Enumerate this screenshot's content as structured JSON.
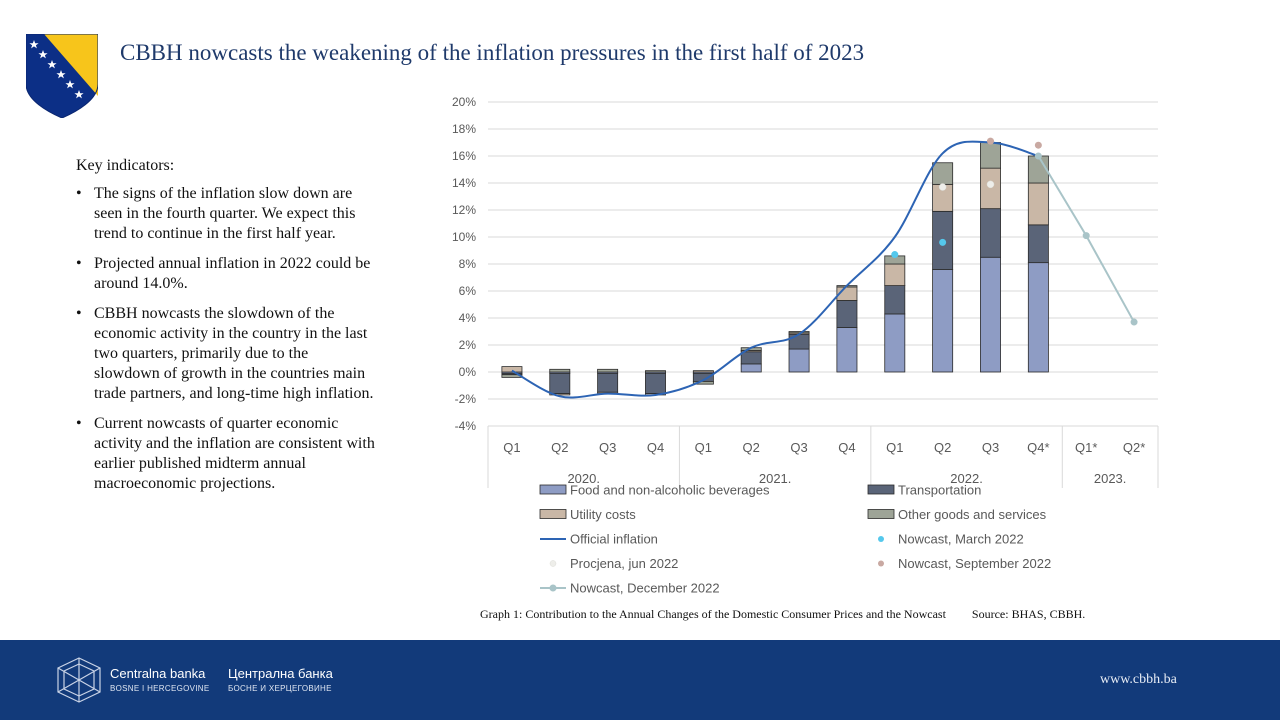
{
  "header": {
    "title": "CBBH  nowcasts the weakening of the inflation pressures in the first half of  2023"
  },
  "key_indicators": {
    "heading": "Key indicators:",
    "items": [
      "The signs of the inflation  slow down are seen in the fourth quarter. We expect this trend to continue in the first half year.",
      "Projected annual  inflation  in  2022 could be around 14.0%.",
      "CBBH nowcasts the slowdown of the economic activity in the country in the last two quarters, primarily due to the slowdown of growth in the countries main trade partners, and long-time  high  inflation.",
      "Current nowcasts of quarter economic activity  and the inflation are consistent with earlier published midterm annual macroeconomic projections."
    ]
  },
  "caption": {
    "graph": "Graph 1: Contribution to the Annual  Changes of the Domestic Consumer Prices and the Nowcast",
    "source": "Source: BHAS,  CBBH."
  },
  "footer": {
    "bank_latin": "Centralna banka",
    "bank_latin_sub": "BOSNE I HERCEGOVINE",
    "bank_cyrillic": "Централна банка",
    "bank_cyrillic_sub": "БОСНЕ И ХЕРЦЕГОВИНЕ",
    "website": "www.cbbh.ba"
  },
  "colors": {
    "title": "#1f3a6b",
    "footer_bg": "#123a7a",
    "food": "#8e9cc4",
    "transport": "#5a6478",
    "utility": "#c9b7a6",
    "other": "#9ea497",
    "official": "#2d64b4",
    "nowcast_dec": "#a9c4c8",
    "nowcast_mar": "#55c8ec",
    "procjena": "#eeeeea",
    "nowcast_sep": "#c9a9a2"
  },
  "chart_data": {
    "type": "bar",
    "stacked": true,
    "ylim": [
      -4,
      20
    ],
    "yticks": [
      "-4%",
      "-2%",
      "0%",
      "2%",
      "4%",
      "6%",
      "8%",
      "10%",
      "12%",
      "14%",
      "16%",
      "18%",
      "20%"
    ],
    "grid": true,
    "legend_position": "bottom",
    "categories": [
      "Q1",
      "Q2",
      "Q3",
      "Q4",
      "Q1",
      "Q2",
      "Q3",
      "Q4",
      "Q1",
      "Q2",
      "Q3",
      "Q4*",
      "Q1*",
      "Q2*"
    ],
    "year_groups": [
      {
        "label": "2020.",
        "start": 0,
        "end": 3
      },
      {
        "label": "2021.",
        "start": 4,
        "end": 7
      },
      {
        "label": "2022.",
        "start": 8,
        "end": 11
      },
      {
        "label": "2023.",
        "start": 12,
        "end": 13
      }
    ],
    "series": [
      {
        "name": "Food and non-alcoholic beverages",
        "kind": "bar",
        "color_key": "food",
        "values": [
          -0.1,
          -0.1,
          -0.1,
          -0.1,
          -0.1,
          0.6,
          1.7,
          3.3,
          4.3,
          7.6,
          8.5,
          8.1,
          null,
          null
        ]
      },
      {
        "name": "Transportation",
        "kind": "bar",
        "color_key": "transport",
        "values": [
          -0.1,
          -1.5,
          -1.4,
          -1.5,
          -0.6,
          0.9,
          1.1,
          2.0,
          2.1,
          4.3,
          3.6,
          2.8,
          null,
          null
        ]
      },
      {
        "name": "Utility costs",
        "kind": "bar",
        "color_key": "utility",
        "values": [
          0.4,
          -0.1,
          -0.1,
          -0.1,
          0.1,
          0.1,
          0.1,
          1.0,
          1.6,
          2.0,
          3.0,
          3.1,
          null,
          null
        ]
      },
      {
        "name": "Other goods and services",
        "kind": "bar",
        "color_key": "other",
        "values": [
          -0.2,
          0.2,
          0.2,
          0.1,
          -0.2,
          0.2,
          0.1,
          0.1,
          0.6,
          1.6,
          1.9,
          2.0,
          null,
          null
        ]
      },
      {
        "name": "Official inflation",
        "kind": "line",
        "color_key": "official",
        "values": [
          0.1,
          -1.8,
          -1.6,
          -1.7,
          -0.6,
          1.8,
          2.8,
          6.4,
          10.0,
          16.2,
          17.0,
          16.0,
          null,
          null
        ]
      },
      {
        "name": "Nowcast, March 2022",
        "kind": "points",
        "color_key": "nowcast_mar",
        "values": [
          null,
          null,
          null,
          null,
          null,
          null,
          null,
          null,
          8.7,
          9.6,
          null,
          null,
          null,
          null
        ]
      },
      {
        "name": "Procjena, jun 2022",
        "kind": "points",
        "color_key": "procjena",
        "values": [
          null,
          null,
          null,
          null,
          null,
          null,
          null,
          null,
          null,
          13.7,
          13.9,
          null,
          null,
          null
        ]
      },
      {
        "name": "Nowcast, September 2022",
        "kind": "points",
        "color_key": "nowcast_sep",
        "values": [
          null,
          null,
          null,
          null,
          null,
          null,
          null,
          null,
          null,
          null,
          17.1,
          16.8,
          null,
          null
        ]
      },
      {
        "name": "Nowcast, December 2022",
        "kind": "line-points",
        "color_key": "nowcast_dec",
        "values": [
          null,
          null,
          null,
          null,
          null,
          null,
          null,
          null,
          null,
          null,
          null,
          16.0,
          10.1,
          3.7
        ]
      }
    ]
  }
}
